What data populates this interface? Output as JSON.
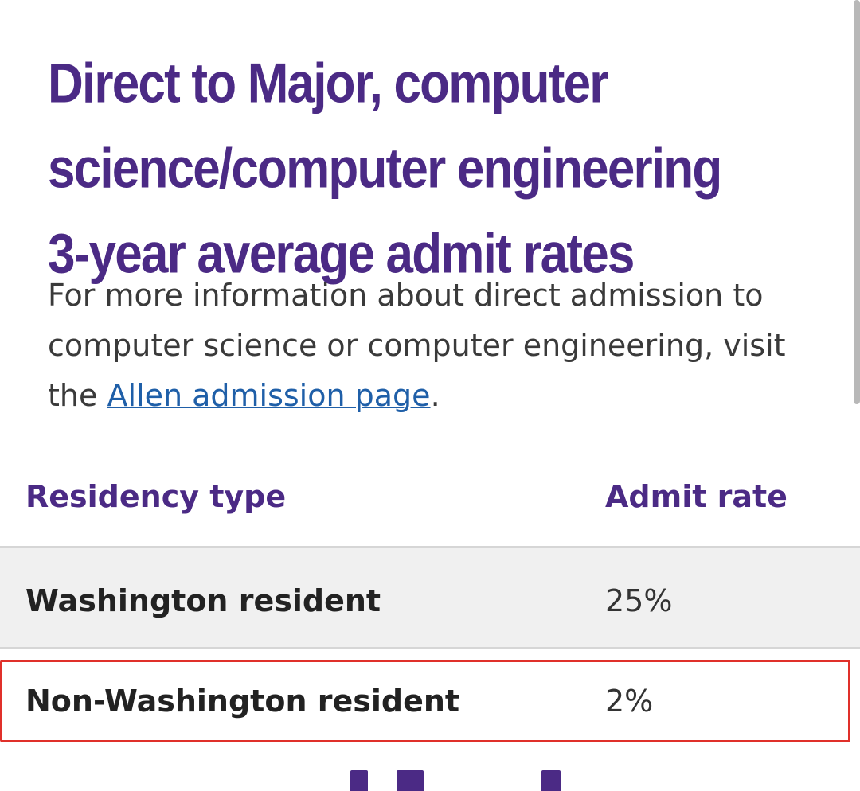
{
  "heading": {
    "line1": "Direct to Major, computer",
    "line2": "science/computer engineering",
    "line3": "3-year average admit rates"
  },
  "description": {
    "text_before": "For more information about direct admission to computer science or computer engineering, visit the ",
    "link_text": "Allen admission page",
    "text_after": "."
  },
  "table": {
    "headers": {
      "residency": "Residency type",
      "rate": "Admit rate"
    },
    "rows": [
      {
        "label": "Washington resident",
        "value": "25%"
      },
      {
        "label": "Non-Washington resident",
        "value": "2%"
      }
    ]
  },
  "colors": {
    "accent": "#4b2a85",
    "link": "#1f5fa8",
    "highlight": "#e0302a"
  }
}
